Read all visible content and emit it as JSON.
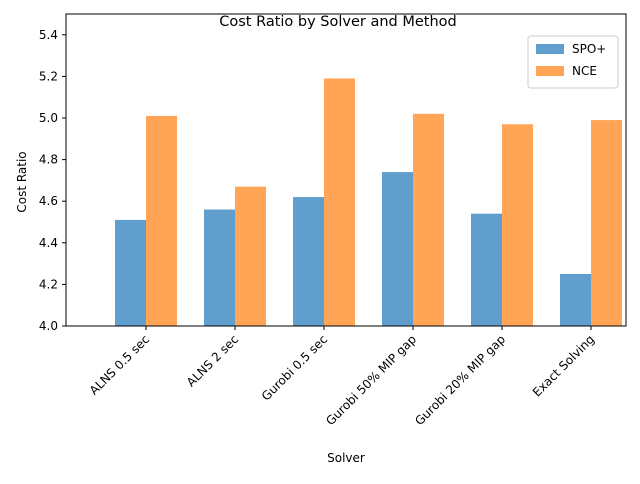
{
  "chart_data": {
    "type": "bar",
    "title": "Cost Ratio by Solver and Method",
    "xlabel": "Solver",
    "ylabel": "Cost Ratio",
    "categories": [
      "ALNS 0.5 sec",
      "ALNS 2 sec",
      "Gurobi 0.5 sec",
      "Gurobi 50% MIP gap",
      "Gurobi 20% MIP gap",
      "Exact Solving"
    ],
    "series": [
      {
        "name": "SPO+",
        "values": [
          4.51,
          4.56,
          4.62,
          4.74,
          4.54,
          4.25
        ],
        "color": "#5f9ecd"
      },
      {
        "name": "NCE",
        "values": [
          5.01,
          4.67,
          5.19,
          5.02,
          4.97,
          4.99
        ],
        "color": "#ffa555"
      }
    ],
    "ylim": [
      4.0,
      5.5
    ],
    "yticks": [
      "4.0",
      "4.2",
      "4.4",
      "4.6",
      "4.8",
      "5.0",
      "5.2",
      "5.4"
    ],
    "grid": false,
    "legend_position": "top-right",
    "xtick_rotation_deg": 45
  }
}
